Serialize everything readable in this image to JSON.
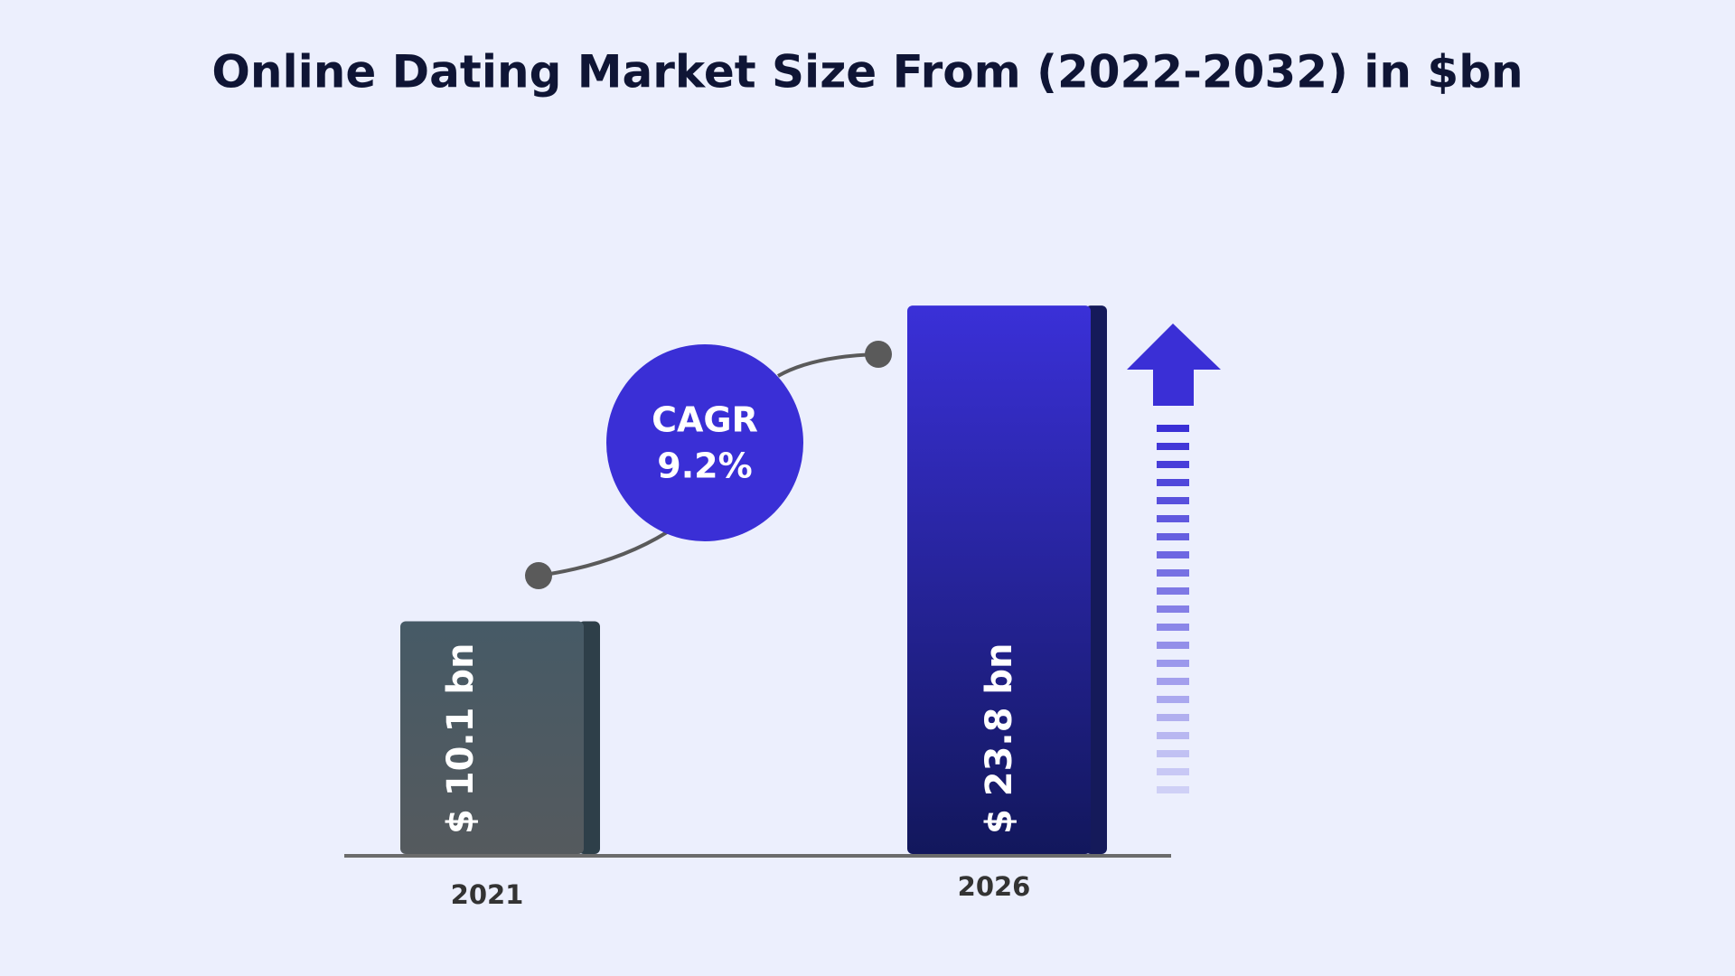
{
  "chart_data": {
    "type": "bar",
    "title": "Online Dating Market Size From (2022-2032) in $bn",
    "categories": [
      "2021",
      "2026"
    ],
    "values": [
      10.1,
      23.8
    ],
    "value_labels": [
      "$ 10.1 bn",
      "$ 23.8 bn"
    ],
    "colors": [
      "#4a5a63",
      "#2a25b8"
    ],
    "annotation": {
      "label": "CAGR",
      "value": 9.2,
      "value_label": "9.2%"
    }
  }
}
